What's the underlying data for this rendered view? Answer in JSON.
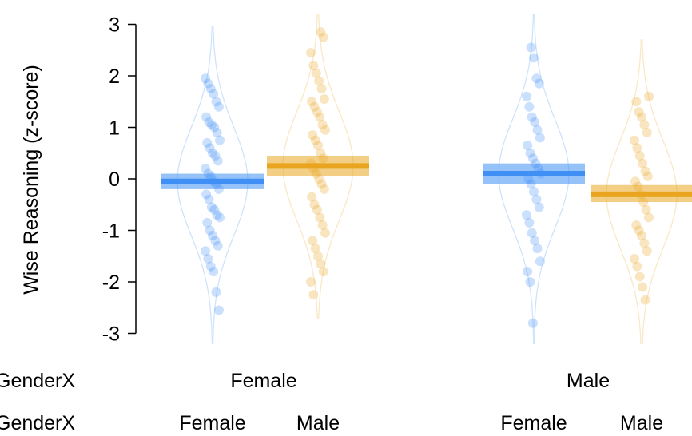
{
  "chart_data": {
    "type": "pirate",
    "ylabel": "Wise Reasoning (z-score)",
    "ylim": [
      -3,
      3
    ],
    "yticks": [
      "-3",
      "-2",
      "-1",
      "0",
      "1",
      "2",
      "3"
    ],
    "row_labels": [
      "GenderX",
      "GenderX"
    ],
    "outer_categories": [
      "Female",
      "Male"
    ],
    "inner_categories": [
      "Female",
      "Male"
    ],
    "colors": {
      "blue": "#3f8ff5",
      "orange": "#e9a520"
    },
    "groups": [
      {
        "outer": "Female",
        "inner": "Female",
        "color": "blue",
        "mean": -0.05,
        "ci": [
          -0.2,
          0.1
        ],
        "violin_range": [
          -3.2,
          2.95
        ],
        "points": [
          1.95,
          1.85,
          1.75,
          1.65,
          1.5,
          1.4,
          1.2,
          1.1,
          1.05,
          1.0,
          0.9,
          0.75,
          0.7,
          0.6,
          0.5,
          0.45,
          0.35,
          0.2,
          0.1,
          0.05,
          -0.05,
          -0.1,
          -0.2,
          -0.3,
          -0.4,
          -0.55,
          -0.6,
          -0.7,
          -0.75,
          -0.85,
          -1.0,
          -1.1,
          -1.2,
          -1.3,
          -1.4,
          -1.55,
          -1.7,
          -1.8,
          -2.2,
          -2.55
        ]
      },
      {
        "outer": "Female",
        "inner": "Male",
        "color": "orange",
        "mean": 0.25,
        "ci": [
          0.05,
          0.45
        ],
        "violin_range": [
          -2.7,
          3.2
        ],
        "points": [
          2.85,
          2.75,
          2.45,
          2.2,
          2.05,
          1.9,
          1.75,
          1.55,
          1.5,
          1.4,
          1.3,
          1.2,
          1.05,
          0.95,
          0.85,
          0.75,
          0.65,
          0.5,
          0.4,
          0.3,
          0.2,
          0.1,
          0.0,
          -0.1,
          -0.2,
          -0.35,
          -0.5,
          -0.6,
          -0.75,
          -0.9,
          -1.05,
          -1.2,
          -1.35,
          -1.5,
          -1.65,
          -1.8,
          -2.0,
          -2.25
        ]
      },
      {
        "outer": "Male",
        "inner": "Female",
        "color": "blue",
        "mean": 0.1,
        "ci": [
          -0.1,
          0.3
        ],
        "violin_range": [
          -3.2,
          3.2
        ],
        "points": [
          2.55,
          2.35,
          1.95,
          1.85,
          1.6,
          1.4,
          1.2,
          1.1,
          0.95,
          0.8,
          0.65,
          0.5,
          0.4,
          0.3,
          0.2,
          0.1,
          0.0,
          -0.1,
          -0.25,
          -0.4,
          -0.55,
          -0.7,
          -0.85,
          -1.05,
          -1.2,
          -1.35,
          -1.6,
          -1.8,
          -2.0,
          -2.8
        ]
      },
      {
        "outer": "Male",
        "inner": "Male",
        "color": "orange",
        "mean": -0.3,
        "ci": [
          -0.45,
          -0.12
        ],
        "violin_range": [
          -3.2,
          2.7
        ],
        "points": [
          1.6,
          1.5,
          1.3,
          1.2,
          1.05,
          0.9,
          0.75,
          0.6,
          0.45,
          0.3,
          0.15,
          0.05,
          -0.05,
          -0.15,
          -0.3,
          -0.45,
          -0.6,
          -0.75,
          -0.9,
          -1.0,
          -1.1,
          -1.25,
          -1.4,
          -1.55,
          -1.7,
          -1.9,
          -2.1,
          -2.35
        ]
      }
    ]
  }
}
